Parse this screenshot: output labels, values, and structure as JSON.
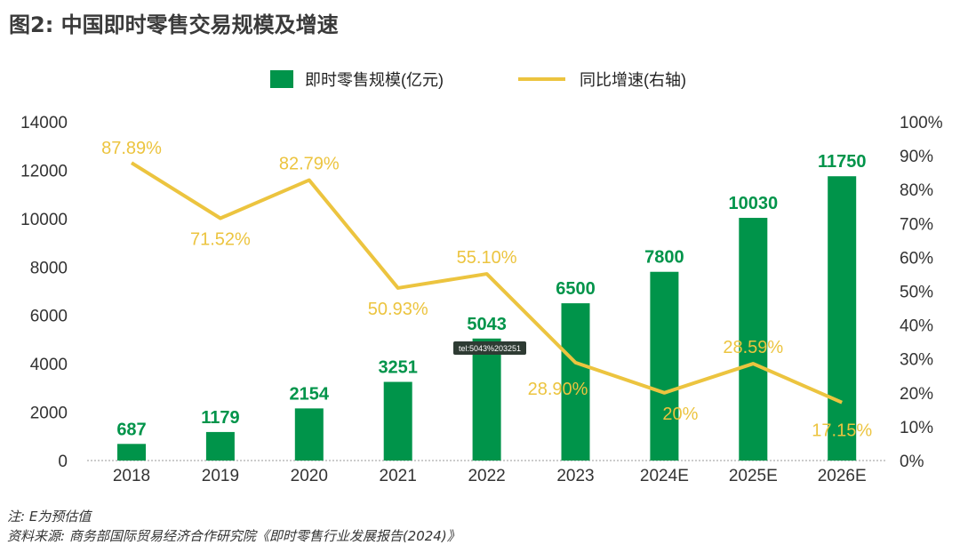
{
  "title": "图2: 中国即时零售交易规模及增速",
  "chart_data": {
    "type": "bar+line",
    "categories": [
      "2018",
      "2019",
      "2020",
      "2021",
      "2022",
      "2023",
      "2024E",
      "2025E",
      "2026E"
    ],
    "series": [
      {
        "name": "即时零售规模(亿元)",
        "type": "bar",
        "axis": "left",
        "color": "#00944a",
        "values": [
          687,
          1179,
          2154,
          3251,
          5043,
          6500,
          7800,
          10030,
          11750
        ],
        "labels": [
          "687",
          "1179",
          "2154",
          "3251",
          "5043",
          "6500",
          "7800",
          "10030",
          "11750"
        ]
      },
      {
        "name": "同比增速(右轴)",
        "type": "line",
        "axis": "right",
        "color": "#ecc43f",
        "values": [
          87.89,
          71.52,
          82.79,
          50.93,
          55.1,
          28.9,
          20,
          28.59,
          17.15
        ],
        "labels": [
          "87.89%",
          "71.52%",
          "82.79%",
          "50.93%",
          "55.10%",
          "28.90%",
          "20%",
          "28.59%",
          "17.15%"
        ]
      }
    ],
    "ylim_left": [
      0,
      14000
    ],
    "yticks_left": [
      "0",
      "2000",
      "4000",
      "6000",
      "8000",
      "10000",
      "12000",
      "14000"
    ],
    "ylim_right": [
      0,
      100
    ],
    "yticks_right": [
      "0%",
      "10%",
      "20%",
      "30%",
      "40%",
      "50%",
      "60%",
      "70%",
      "80%",
      "90%",
      "100%"
    ],
    "legend_position": "top-center",
    "grid": false,
    "tooltip": "tel:5043%203251"
  },
  "notes": {
    "note": "注: E为预估值",
    "source": "资料来源: 商务部国际贸易经济合作研究院《即时零售行业发展报告(2024)》"
  }
}
